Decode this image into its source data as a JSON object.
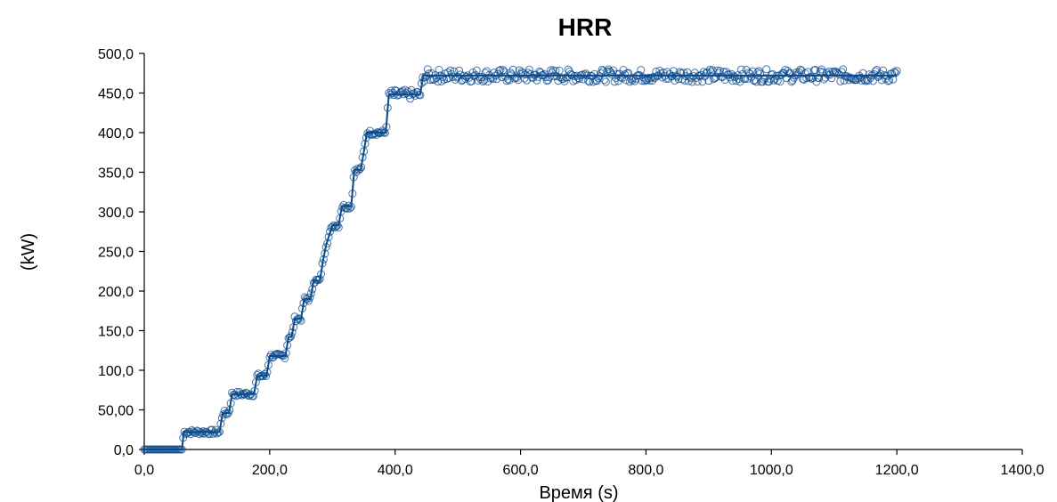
{
  "chart_data": {
    "type": "line",
    "title": "HRR",
    "xlabel": "Время (s)",
    "ylabel": "(kW)",
    "xlim": [
      0,
      1400
    ],
    "ylim": [
      0,
      500
    ],
    "xticks": [
      0,
      200,
      400,
      600,
      800,
      1000,
      1200,
      1400
    ],
    "xtick_labels": [
      "0,0",
      "200,0",
      "400,0",
      "600,0",
      "800,0",
      "1000,0",
      "1200,0",
      "1400,0"
    ],
    "yticks": [
      0,
      50,
      100,
      150,
      200,
      250,
      300,
      350,
      400,
      450,
      500
    ],
    "ytick_labels": [
      "0,0",
      "50,00",
      "100,0",
      "150,0",
      "200,0",
      "250,0",
      "300,0",
      "350,0",
      "400,0",
      "450,0",
      "500,0"
    ],
    "grid": false,
    "line_color": "#0a4a8c",
    "marker": "open-circle",
    "series": [
      {
        "name": "",
        "steps": [
          [
            0,
            0
          ],
          [
            60,
            0
          ],
          [
            63,
            22
          ],
          [
            120,
            22
          ],
          [
            125,
            46
          ],
          [
            135,
            46
          ],
          [
            140,
            70
          ],
          [
            175,
            70
          ],
          [
            180,
            93
          ],
          [
            195,
            93
          ],
          [
            200,
            118
          ],
          [
            225,
            118
          ],
          [
            230,
            142
          ],
          [
            235,
            142
          ],
          [
            240,
            165
          ],
          [
            250,
            165
          ],
          [
            255,
            190
          ],
          [
            265,
            190
          ],
          [
            270,
            213
          ],
          [
            280,
            213
          ],
          [
            285,
            238
          ],
          [
            290,
            258
          ],
          [
            300,
            283
          ],
          [
            310,
            283
          ],
          [
            315,
            307
          ],
          [
            330,
            307
          ],
          [
            335,
            353
          ],
          [
            345,
            353
          ],
          [
            350,
            375
          ],
          [
            355,
            400
          ],
          [
            385,
            400
          ],
          [
            390,
            448
          ],
          [
            440,
            448
          ],
          [
            445,
            472
          ],
          [
            1200,
            472
          ]
        ]
      }
    ]
  }
}
